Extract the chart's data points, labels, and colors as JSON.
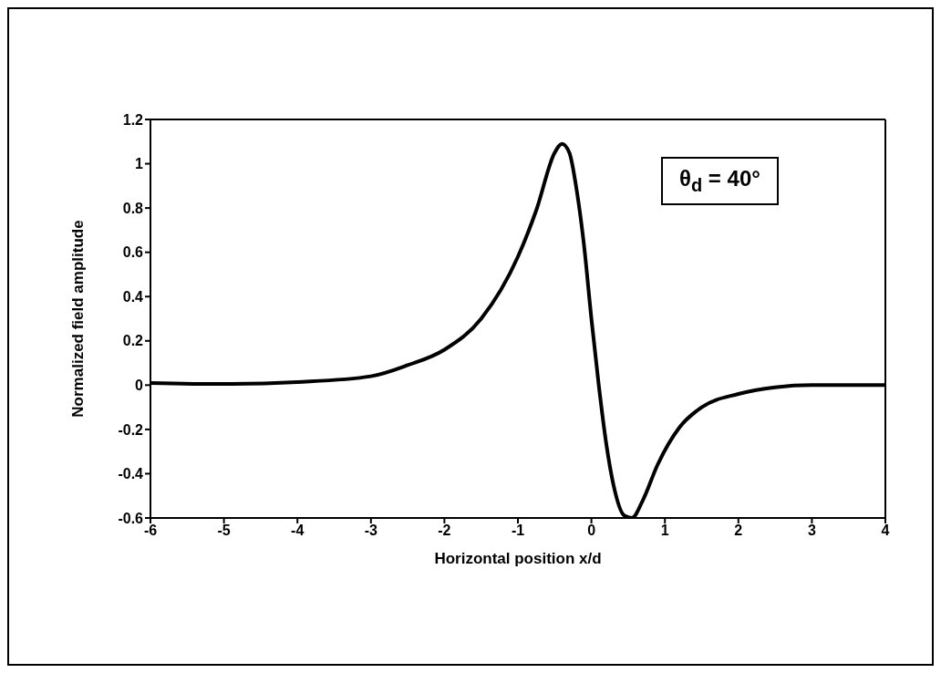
{
  "chart_data": {
    "type": "line",
    "xlabel": "Horizontal position x/d",
    "ylabel": "Normalized field amplitude",
    "annotations": [
      "θ$_{d}$ = 40°"
    ],
    "xlim": [
      -6,
      4
    ],
    "xticks": [
      -6,
      -5,
      -4,
      -3,
      -2,
      -1,
      0,
      1,
      2,
      3,
      4
    ],
    "ylim": [
      -0.6,
      1.2
    ],
    "yticks": [
      -0.6,
      -0.4,
      -0.2,
      0,
      0.2,
      0.4,
      0.6,
      0.8,
      1,
      1.2
    ],
    "legend": false,
    "marker": "none",
    "line_style": "solid",
    "series": [
      {
        "color": "#000000",
        "x": [
          -6,
          -5,
          -4,
          -3,
          -2.5,
          -2,
          -1.5,
          -1,
          -0.75,
          -0.5,
          -0.4,
          -0.3,
          -0.2,
          -0.1,
          0,
          0.1,
          0.2,
          0.3,
          0.45,
          0.55,
          0.7,
          0.9,
          1.2,
          1.5,
          2,
          2.5,
          3,
          4
        ],
        "values": [
          0.01,
          0.005,
          0.014,
          0.04,
          0.09,
          0.16,
          0.3,
          0.58,
          0.79,
          1.05,
          1.09,
          1.05,
          0.88,
          0.63,
          0.3,
          0,
          -0.26,
          -0.45,
          -0.59,
          -0.6,
          -0.52,
          -0.36,
          -0.19,
          -0.1,
          -0.04,
          -0.01,
          0,
          0
        ]
      }
    ]
  }
}
